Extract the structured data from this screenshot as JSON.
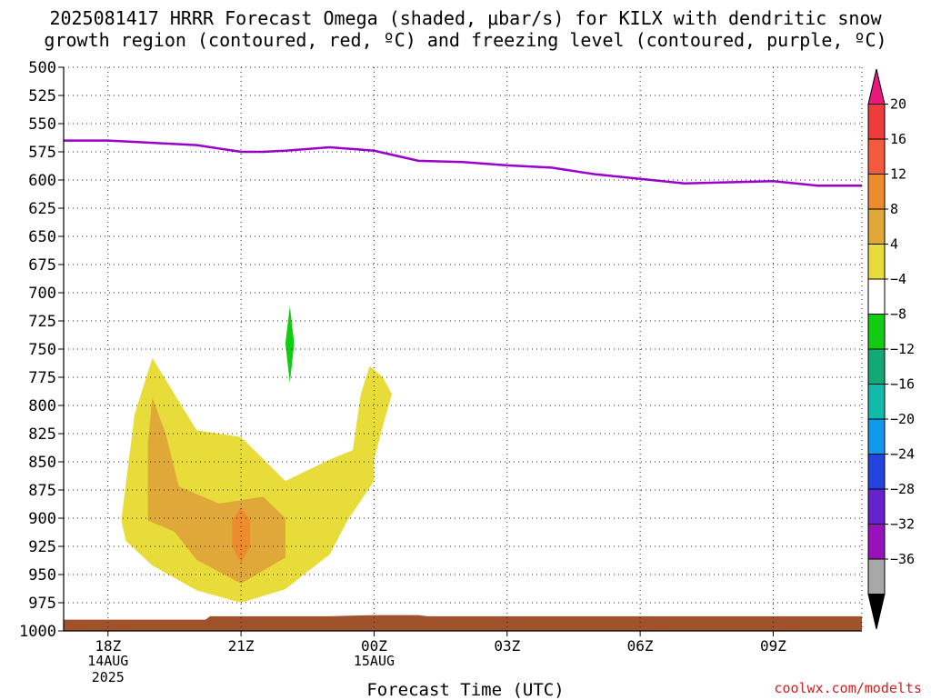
{
  "title_line1": "2025081417 HRRR Forecast Omega (shaded, μbar/s) for KILX with dendritic snow",
  "title_line2": "growth region (contoured, red, ºC) and freezing level (contoured, purple, ºC)",
  "x_axis_label": "Forecast Time (UTC)",
  "credit": "coolwx.com/modelts",
  "chart_data": {
    "type": "area",
    "y_axis": {
      "scale": "pressure (inverted)",
      "range": [
        1000,
        500
      ],
      "ticks": [
        500,
        525,
        550,
        575,
        600,
        625,
        650,
        675,
        700,
        725,
        750,
        775,
        800,
        825,
        850,
        875,
        900,
        925,
        950,
        975,
        1000
      ]
    },
    "x_axis": {
      "range_hours_from_18Z": [
        -1,
        17
      ],
      "ticks": [
        {
          "hour": 0,
          "label": "18Z",
          "sub1": "14AUG",
          "sub2": "2025"
        },
        {
          "hour": 3,
          "label": "21Z",
          "sub1": "",
          "sub2": ""
        },
        {
          "hour": 6,
          "label": "00Z",
          "sub1": "15AUG",
          "sub2": ""
        },
        {
          "hour": 9,
          "label": "03Z",
          "sub1": "",
          "sub2": ""
        },
        {
          "hour": 12,
          "label": "06Z",
          "sub1": "",
          "sub2": ""
        },
        {
          "hour": 15,
          "label": "09Z",
          "sub1": "",
          "sub2": ""
        }
      ]
    },
    "grid": true,
    "freezing_level": {
      "color": "#9900cc",
      "points": [
        [
          -1,
          565
        ],
        [
          0,
          565
        ],
        [
          2,
          569
        ],
        [
          3,
          575
        ],
        [
          3.5,
          575
        ],
        [
          4,
          574
        ],
        [
          5,
          571
        ],
        [
          6,
          574
        ],
        [
          7,
          583
        ],
        [
          8,
          584
        ],
        [
          9,
          587
        ],
        [
          10,
          589
        ],
        [
          11,
          595
        ],
        [
          12,
          599
        ],
        [
          13,
          603
        ],
        [
          14,
          602
        ],
        [
          15,
          601
        ],
        [
          16,
          605
        ],
        [
          17,
          605
        ]
      ]
    },
    "omega_regions": [
      {
        "level": "4-8",
        "color": "#e8dc3a",
        "points": [
          [
            0.3,
            902
          ],
          [
            0.6,
            808
          ],
          [
            1,
            758
          ],
          [
            1.5,
            790
          ],
          [
            2,
            822
          ],
          [
            3,
            828
          ],
          [
            4,
            867
          ],
          [
            5,
            848
          ],
          [
            6,
            832
          ],
          [
            6,
            867
          ],
          [
            5.4,
            902
          ],
          [
            5,
            932
          ],
          [
            4,
            963
          ],
          [
            3,
            975
          ],
          [
            2,
            964
          ],
          [
            1,
            942
          ],
          [
            0.4,
            920
          ]
        ]
      },
      {
        "level": "4-8",
        "color": "#e8dc3a",
        "points": [
          [
            5.5,
            845
          ],
          [
            5.7,
            790
          ],
          [
            5.9,
            765
          ],
          [
            6.2,
            775
          ],
          [
            6.4,
            790
          ],
          [
            6.2,
            818
          ],
          [
            6,
            848
          ]
        ]
      },
      {
        "level": "8-12",
        "color": "#e0a838",
        "points": [
          [
            0.9,
            902
          ],
          [
            0.9,
            833
          ],
          [
            1,
            793
          ],
          [
            1.3,
            825
          ],
          [
            1.6,
            872
          ],
          [
            2.5,
            887
          ],
          [
            3.5,
            881
          ],
          [
            4,
            900
          ],
          [
            4,
            935
          ],
          [
            3,
            958
          ],
          [
            2,
            937
          ],
          [
            1.5,
            912
          ]
        ]
      },
      {
        "level": "12-16",
        "color": "#ec8c2c",
        "points": [
          [
            2.8,
            925
          ],
          [
            2.8,
            902
          ],
          [
            3,
            890
          ],
          [
            3.2,
            902
          ],
          [
            3.2,
            925
          ],
          [
            3,
            940
          ]
        ]
      },
      {
        "level": "-8 to -4",
        "color": "#11cc11",
        "points": [
          [
            4,
            745
          ],
          [
            4.1,
            712
          ],
          [
            4.2,
            745
          ],
          [
            4.1,
            780
          ]
        ]
      }
    ],
    "ground": {
      "color": "#a0522d",
      "points": [
        [
          -1,
          990
        ],
        [
          2.2,
          990
        ],
        [
          2.3,
          987
        ],
        [
          5,
          987
        ],
        [
          6,
          986
        ],
        [
          7,
          986
        ],
        [
          7.2,
          987
        ],
        [
          17,
          987
        ]
      ]
    },
    "colorbar": {
      "colors": [
        "#e8197a",
        "#ee3b3b",
        "#f45a3c",
        "#ec8c2c",
        "#e0a838",
        "#e8dc3a",
        "#ffffff",
        "#11cc11",
        "#11aa77",
        "#11bbaa",
        "#1199ee",
        "#2244dd",
        "#6622cc",
        "#9911bb",
        "#a8a8a8",
        "#000000"
      ],
      "labels": [
        "20",
        "16",
        "12",
        "8",
        "4",
        "−4",
        "−8",
        "−12",
        "−16",
        "−20",
        "−24",
        "−28",
        "−32",
        "−36"
      ]
    }
  }
}
